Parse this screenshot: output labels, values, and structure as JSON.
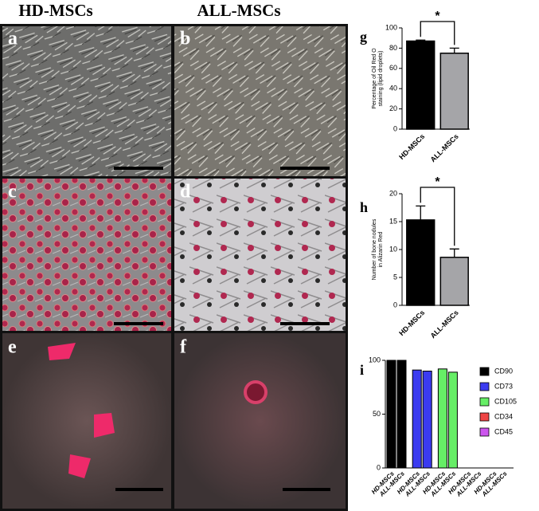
{
  "image_panels": {
    "column_labels": [
      "HD-MSCs",
      "ALL-MSCs"
    ],
    "panel_labels": [
      "a",
      "b",
      "c",
      "d",
      "e",
      "f"
    ]
  },
  "chart_data": [
    {
      "type": "bar",
      "panel_label": "g",
      "y_label": [
        "Percentage of Oil Red O",
        "staining (lipid droplets)"
      ],
      "categories": [
        "HD-MSCs",
        "ALL-MSCs"
      ],
      "values": [
        87,
        75
      ],
      "errors": [
        1,
        5
      ],
      "colors": [
        "#000000",
        "#a5a5a8"
      ],
      "ylim": [
        0,
        100
      ],
      "yticks": [
        0,
        20,
        40,
        60,
        80,
        100
      ],
      "annotation": "*"
    },
    {
      "type": "bar",
      "panel_label": "h",
      "y_label": [
        "Number of bone nodules",
        "in Alizarin Red"
      ],
      "categories": [
        "HD-MSCs",
        "ALL-MSCs"
      ],
      "values": [
        15.3,
        8.6
      ],
      "errors": [
        2.5,
        1.5
      ],
      "colors": [
        "#000000",
        "#a5a5a8"
      ],
      "ylim": [
        0,
        20
      ],
      "yticks": [
        0,
        5,
        10,
        15,
        20
      ],
      "annotation": "*"
    },
    {
      "type": "grouped_bar",
      "panel_label": "i",
      "categories": [
        "HD-MSCs",
        "ALL-MSCs"
      ],
      "series": [
        {
          "name": "CD90",
          "color": "#000000",
          "values": [
            100,
            100
          ]
        },
        {
          "name": "CD73",
          "color": "#3b3bf0",
          "values": [
            91,
            90
          ]
        },
        {
          "name": "CD105",
          "color": "#66ee66",
          "values": [
            92,
            89
          ]
        },
        {
          "name": "CD34",
          "color": "#ee4444",
          "values": [
            0,
            0
          ]
        },
        {
          "name": "CD45",
          "color": "#cc55ee",
          "values": [
            0,
            0
          ]
        }
      ],
      "ylim": [
        0,
        100
      ],
      "yticks": [
        0,
        50,
        100
      ],
      "legend": "right"
    }
  ]
}
